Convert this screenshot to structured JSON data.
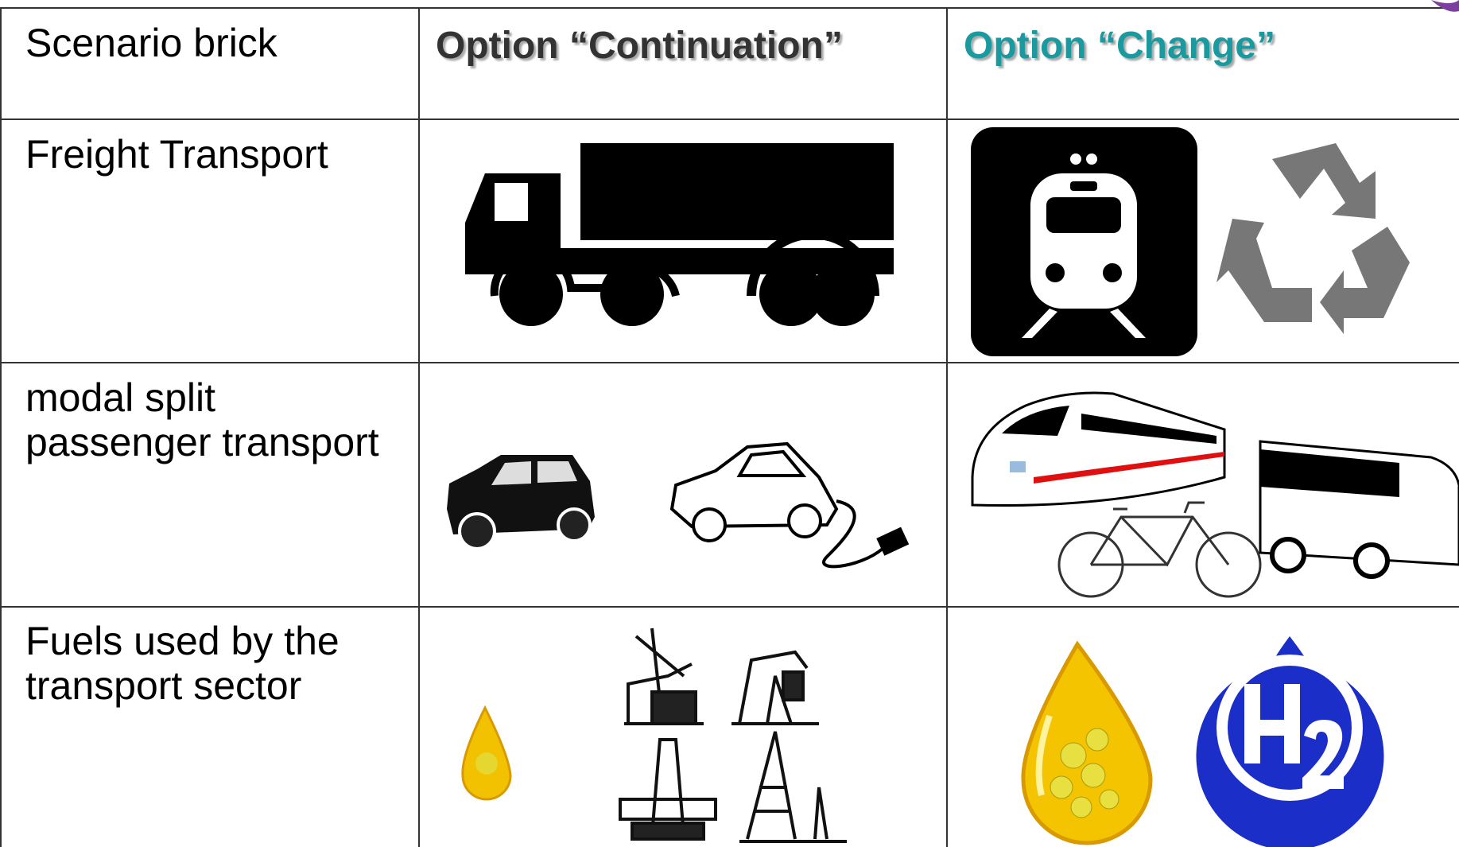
{
  "table": {
    "header": [
      "Scenario brick",
      "Option “Continuation”",
      "Option “Change”"
    ],
    "rows": [
      {
        "label": [
          "Freight Transport"
        ]
      },
      {
        "label": [
          "modal split",
          "passenger transport"
        ]
      },
      {
        "label": [
          "Fuels used by the",
          "transport sector"
        ]
      }
    ]
  }
}
